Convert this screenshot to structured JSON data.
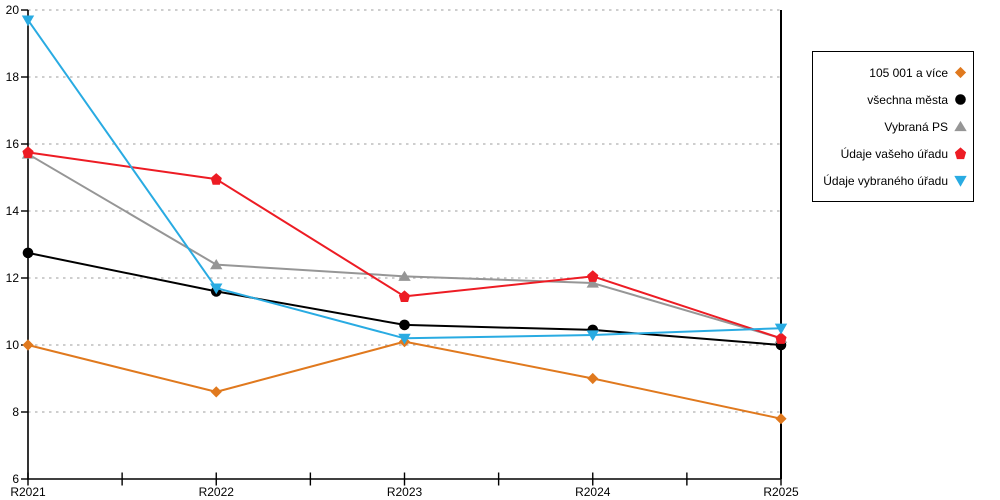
{
  "chart_data": {
    "type": "line",
    "title": "",
    "x": [
      "R2021",
      "R2022",
      "R2023",
      "R2024",
      "R2025"
    ],
    "series": [
      {
        "name": "105 001 a více",
        "color": "#E0791E",
        "marker": "diamond",
        "values": [
          10.0,
          8.6,
          10.1,
          9.0,
          7.8
        ]
      },
      {
        "name": "všechna města",
        "color": "#000000",
        "marker": "circle",
        "values": [
          12.75,
          11.6,
          10.6,
          10.45,
          10.0
        ]
      },
      {
        "name": "Vybraná PS",
        "color": "#969696",
        "marker": "triangle-up",
        "values": [
          15.7,
          12.4,
          12.05,
          11.85,
          10.2
        ]
      },
      {
        "name": "Údaje vašeho úřadu",
        "color": "#ED1C24",
        "marker": "pentagon",
        "values": [
          15.75,
          14.95,
          11.45,
          12.05,
          10.2
        ]
      },
      {
        "name": "Údaje vybraného úřadu",
        "color": "#29ABE2",
        "marker": "triangle-down",
        "values": [
          19.7,
          11.7,
          10.2,
          10.3,
          10.5
        ]
      }
    ],
    "ylim": [
      6,
      20
    ],
    "yticks": [
      6,
      8,
      10,
      12,
      14,
      16,
      18,
      20
    ],
    "grid": true,
    "gridline_color": "#B0B0B0",
    "axis_color": "#000000",
    "legend_position": "right"
  }
}
